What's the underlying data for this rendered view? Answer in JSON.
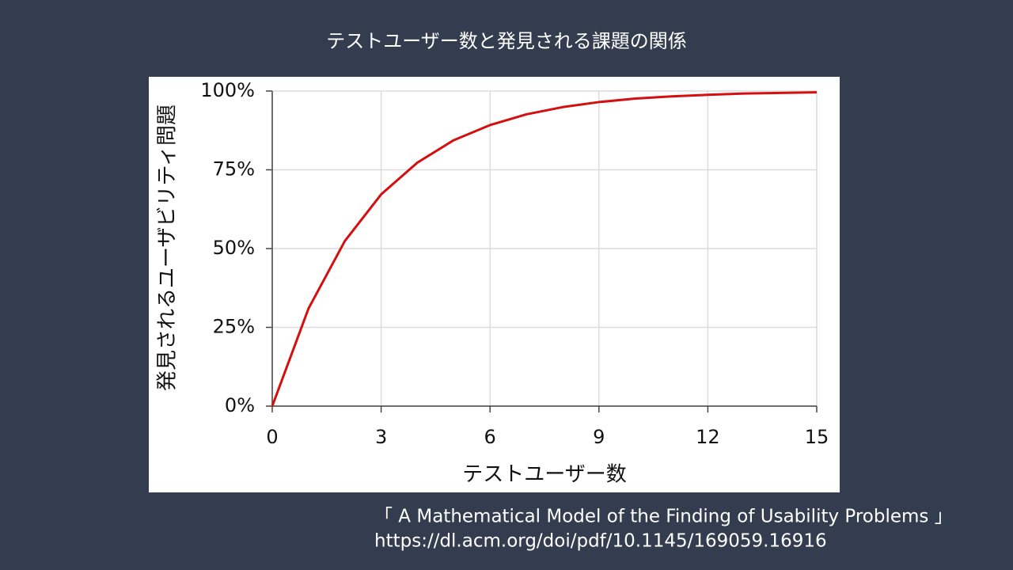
{
  "chart_data": {
    "type": "line",
    "title": "テストユーザー数と発見される課題の関係",
    "x_label": "テストユーザー数",
    "y_label": "発見されるユーザビリティ問題",
    "x": [
      0,
      1,
      2,
      3,
      4,
      5,
      6,
      7,
      8,
      9,
      10,
      11,
      12,
      13,
      14,
      15
    ],
    "series": [
      {
        "name": "発見されるユーザビリティ問題",
        "color": "#d40f0f",
        "values": [
          0,
          31,
          52.4,
          67.2,
          77.3,
          84.4,
          89.2,
          92.6,
          94.9,
          96.5,
          97.6,
          98.3,
          98.8,
          99.2,
          99.4,
          99.6
        ]
      }
    ],
    "xlim": [
      0,
      15
    ],
    "xticks": [
      0,
      3,
      6,
      9,
      12,
      15
    ],
    "ylim": [
      0,
      100
    ],
    "yticks": [
      {
        "value": 0,
        "label": "0%"
      },
      {
        "value": 25,
        "label": "25%"
      },
      {
        "value": 50,
        "label": "50%"
      },
      {
        "value": 75,
        "label": "75%"
      },
      {
        "value": 100,
        "label": "100%"
      }
    ],
    "grid": true,
    "source": [
      "「 A Mathematical Model of the Finding of Usability Problems 」",
      "https://dl.acm.org/doi/pdf/10.1145/169059.16916"
    ]
  }
}
